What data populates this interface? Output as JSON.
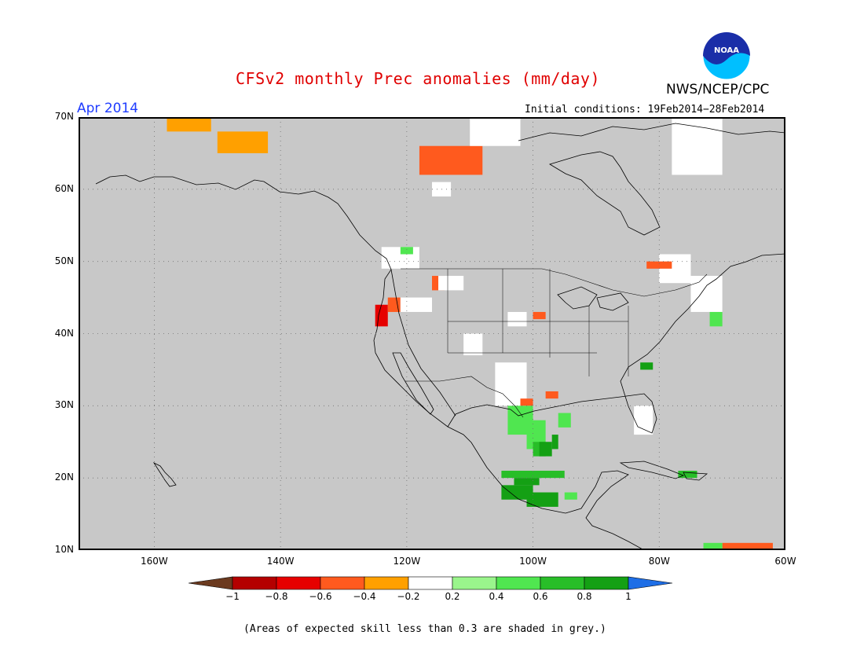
{
  "title": "CFSv2 monthly Prec anomalies (mm/day)",
  "agency": "NWS/NCEP/CPC",
  "logo_text": "NOAA",
  "valid_month": "Apr 2014",
  "initial_conditions": "Initial conditions: 19Feb2014−28Feb2014",
  "footnote": "(Areas of expected skill less than 0.3 are shaded in grey.)",
  "colors": {
    "skill_mask": "#c8c8c8",
    "land_outline": "#000000",
    "grid": "#707070"
  },
  "map": {
    "lon_range": [
      -172,
      -60
    ],
    "lat_range": [
      10,
      70
    ],
    "lat_ticks": [
      {
        "value": 70,
        "label": "70N"
      },
      {
        "value": 60,
        "label": "60N"
      },
      {
        "value": 50,
        "label": "50N"
      },
      {
        "value": 40,
        "label": "40N"
      },
      {
        "value": 30,
        "label": "30N"
      },
      {
        "value": 20,
        "label": "20N"
      },
      {
        "value": 10,
        "label": "10N"
      }
    ],
    "lon_ticks": [
      {
        "value": -160,
        "label": "160W"
      },
      {
        "value": -140,
        "label": "140W"
      },
      {
        "value": -120,
        "label": "120W"
      },
      {
        "value": -100,
        "label": "100W"
      },
      {
        "value": -80,
        "label": "80W"
      },
      {
        "value": -60,
        "label": "60W"
      }
    ]
  },
  "colorbar": {
    "bins": [
      {
        "color": "#6b3a1f"
      },
      {
        "color": "#b40000"
      },
      {
        "color": "#e60000"
      },
      {
        "color": "#ff5a1e"
      },
      {
        "color": "#ffa000"
      },
      {
        "color": "#ffffff"
      },
      {
        "color": "#9af58c"
      },
      {
        "color": "#50e650"
      },
      {
        "color": "#28be28"
      },
      {
        "color": "#14a014"
      },
      {
        "color": "#1e6ee6"
      }
    ],
    "labels": [
      "−1",
      "−0.8",
      "−0.6",
      "−0.4",
      "−0.2",
      "0.2",
      "0.4",
      "0.6",
      "0.8",
      "1"
    ]
  },
  "anomaly_patches": [
    {
      "value": -0.3,
      "lon": [
        -158,
        -151
      ],
      "lat": [
        68,
        70
      ]
    },
    {
      "value": -0.3,
      "lon": [
        -150,
        -142
      ],
      "lat": [
        65,
        68
      ]
    },
    {
      "value": -0.5,
      "lon": [
        -118,
        -108
      ],
      "lat": [
        62,
        66
      ]
    },
    {
      "value": -0.1,
      "lon": [
        -116,
        -113
      ],
      "lat": [
        59,
        61
      ]
    },
    {
      "value": -0.1,
      "lon": [
        -124,
        -118
      ],
      "lat": [
        49,
        52
      ]
    },
    {
      "value": 0.3,
      "lon": [
        -121,
        -119
      ],
      "lat": [
        51,
        52
      ]
    },
    {
      "value": -0.5,
      "lon": [
        -116,
        -114
      ],
      "lat": [
        46,
        48
      ]
    },
    {
      "value": -0.1,
      "lon": [
        -115,
        -111
      ],
      "lat": [
        46,
        48
      ]
    },
    {
      "value": -0.7,
      "lon": [
        -125,
        -123
      ],
      "lat": [
        41,
        44
      ]
    },
    {
      "value": -0.5,
      "lon": [
        -123,
        -121
      ],
      "lat": [
        43,
        45
      ]
    },
    {
      "value": -0.1,
      "lon": [
        -121,
        -116
      ],
      "lat": [
        43,
        45
      ]
    },
    {
      "value": -0.5,
      "lon": [
        -100,
        -98
      ],
      "lat": [
        42,
        43
      ]
    },
    {
      "value": -0.1,
      "lon": [
        -104,
        -101
      ],
      "lat": [
        41,
        43
      ]
    },
    {
      "value": -0.1,
      "lon": [
        -111,
        -108
      ],
      "lat": [
        37,
        40
      ]
    },
    {
      "value": -0.1,
      "lon": [
        -106,
        -101
      ],
      "lat": [
        30,
        36
      ]
    },
    {
      "value": -0.5,
      "lon": [
        -98,
        -96
      ],
      "lat": [
        31,
        32
      ]
    },
    {
      "value": -0.5,
      "lon": [
        -102,
        -100
      ],
      "lat": [
        30,
        31
      ]
    },
    {
      "value": 0.3,
      "lon": [
        -104,
        -100
      ],
      "lat": [
        26,
        30
      ]
    },
    {
      "value": 0.3,
      "lon": [
        -101,
        -98
      ],
      "lat": [
        24,
        28
      ]
    },
    {
      "value": 0.5,
      "lon": [
        -100,
        -98
      ],
      "lat": [
        23,
        25
      ]
    },
    {
      "value": 0.9,
      "lon": [
        -99,
        -97
      ],
      "lat": [
        23,
        25
      ]
    },
    {
      "value": 0.7,
      "lon": [
        -97,
        -96
      ],
      "lat": [
        24,
        26
      ]
    },
    {
      "value": 0.3,
      "lon": [
        -96,
        -94
      ],
      "lat": [
        27,
        29
      ]
    },
    {
      "value": 0.5,
      "lon": [
        -105,
        -95
      ],
      "lat": [
        20,
        21
      ]
    },
    {
      "value": 0.7,
      "lon": [
        -103,
        -99
      ],
      "lat": [
        19,
        20
      ]
    },
    {
      "value": 0.9,
      "lon": [
        -105,
        -100
      ],
      "lat": [
        17,
        19
      ]
    },
    {
      "value": 0.9,
      "lon": [
        -101,
        -96
      ],
      "lat": [
        16,
        18
      ]
    },
    {
      "value": 0.3,
      "lon": [
        -95,
        -93
      ],
      "lat": [
        17,
        18
      ]
    },
    {
      "value": 0.7,
      "lon": [
        -83,
        -81
      ],
      "lat": [
        35,
        36
      ]
    },
    {
      "value": 0.5,
      "lon": [
        -77,
        -74
      ],
      "lat": [
        20,
        21
      ]
    },
    {
      "value": -0.1,
      "lon": [
        -80,
        -75
      ],
      "lat": [
        47,
        51
      ]
    },
    {
      "value": -0.1,
      "lon": [
        -75,
        -70
      ],
      "lat": [
        43,
        48
      ]
    },
    {
      "value": -0.5,
      "lon": [
        -82,
        -78
      ],
      "lat": [
        49,
        50
      ]
    },
    {
      "value": 0.3,
      "lon": [
        -72,
        -70
      ],
      "lat": [
        41,
        43
      ]
    },
    {
      "value": -0.1,
      "lon": [
        -84,
        -81
      ],
      "lat": [
        26,
        30
      ]
    },
    {
      "value": -0.1,
      "lon": [
        -110,
        -102
      ],
      "lat": [
        66,
        70
      ]
    },
    {
      "value": -0.1,
      "lon": [
        -78,
        -70
      ],
      "lat": [
        62,
        70
      ]
    },
    {
      "value": -0.5,
      "lon": [
        -70,
        -62
      ],
      "lat": [
        10,
        11
      ]
    },
    {
      "value": 0.3,
      "lon": [
        -73,
        -70
      ],
      "lat": [
        10,
        11
      ]
    }
  ]
}
